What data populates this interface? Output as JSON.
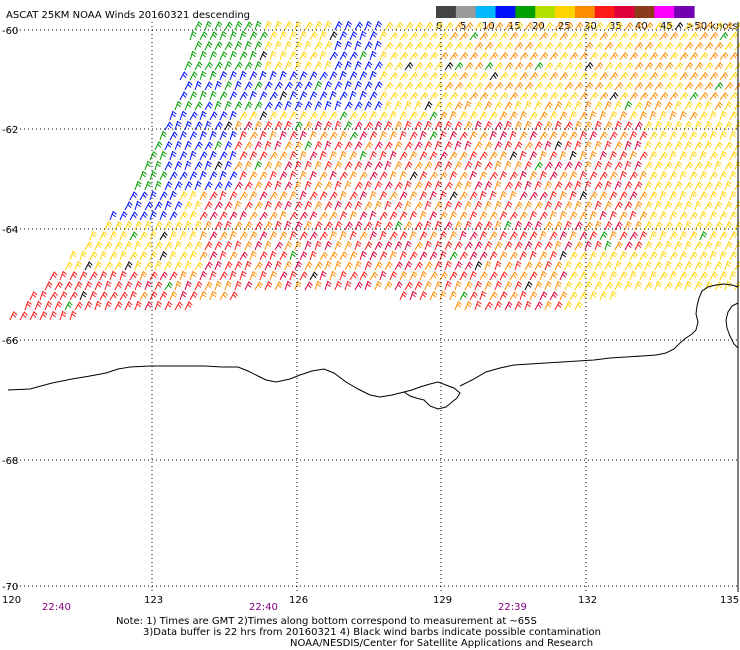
{
  "title": "ASCAT 25KM NOAA Winds 20160321 descending",
  "legend": {
    "labels": [
      "0",
      "5",
      "10",
      "15",
      "20",
      "25",
      "30",
      "35",
      "40",
      "45",
      ">50 knots"
    ],
    "colors": [
      "#444444",
      "#9a9a9a",
      "#00b8ff",
      "#0010ff",
      "#00a000",
      "#b4e000",
      "#ffd400",
      "#ff8c00",
      "#ff1a1a",
      "#e0003c",
      "#8b3a1a",
      "#ff00ff",
      "#7000b0"
    ]
  },
  "lat_labels": [
    "-60",
    "-62",
    "-64",
    "-66",
    "-68",
    "-70"
  ],
  "lon_labels": [
    "120",
    "123",
    "126",
    "129",
    "132",
    "135"
  ],
  "time_labels": [
    "22:40",
    "22:40",
    "22:39"
  ],
  "notes": [
    "Note: 1) Times are GMT 2)Times along bottom correspond to measurement at ~65S",
    "3)Data buffer is 22 hrs from 20160321 4) Black wind barbs indicate possible contamination",
    "NOAA/NESDIS/Center for Satellite Applications and Research"
  ],
  "colors": {
    "text": "#000000",
    "time_text": "#800080",
    "coast": "#000000",
    "grid": "#000000"
  }
}
